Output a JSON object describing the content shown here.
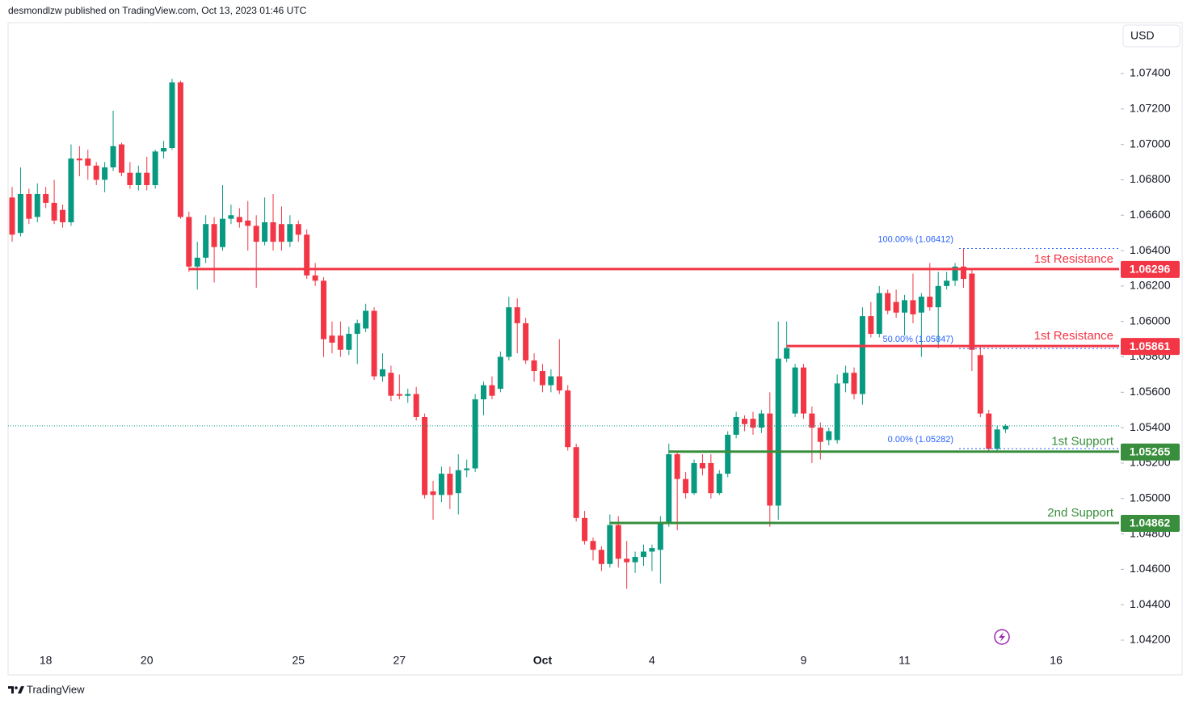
{
  "header": {
    "text": "desmondlzw published on TradingView.com, Oct 13, 2023 01:46 UTC"
  },
  "footer": {
    "brand": "TradingView"
  },
  "chart_data": {
    "type": "candlestick",
    "currency": "USD",
    "up_color": "#089981",
    "down_color": "#f23645",
    "categories": [
      null,
      null,
      null,
      null,
      "18",
      null,
      null,
      null,
      null,
      null,
      null,
      null,
      null,
      null,
      null,
      null,
      "20",
      null,
      null,
      null,
      null,
      null,
      null,
      null,
      null,
      null,
      null,
      null,
      null,
      null,
      null,
      null,
      null,
      null,
      "25",
      null,
      null,
      null,
      null,
      null,
      null,
      null,
      null,
      null,
      null,
      null,
      "27",
      null,
      null,
      null,
      null,
      null,
      null,
      null,
      null,
      null,
      null,
      null,
      null,
      null,
      null,
      null,
      null,
      "Oct",
      null,
      null,
      null,
      null,
      null,
      null,
      null,
      null,
      null,
      null,
      null,
      null,
      "4",
      null,
      null,
      null,
      null,
      null,
      null,
      null,
      null,
      null,
      null,
      null,
      null,
      null,
      null,
      null,
      null,
      null,
      "9",
      null,
      null,
      null,
      null,
      null,
      null,
      null,
      null,
      null,
      null,
      null,
      "11",
      null,
      null,
      null,
      null,
      null,
      null,
      null,
      null,
      null,
      null,
      null,
      null,
      null,
      null,
      null,
      null,
      null,
      "16",
      null,
      null,
      null,
      null,
      null,
      null,
      null
    ],
    "open": [
      1.067,
      1.065,
      1.0672,
      1.0659,
      1.0672,
      1.0667,
      1.0663,
      1.0656,
      1.0692,
      1.0692,
      1.0688,
      1.068,
      1.0687,
      1.07,
      1.0684,
      1.0677,
      1.0684,
      1.0677,
      1.0696,
      1.0698,
      1.0735,
      1.0659,
      1.0631,
      1.0636,
      1.0655,
      1.0642,
      1.0658,
      1.0659,
      1.0657,
      1.0654,
      1.0645,
      1.0656,
      1.0655,
      1.0645,
      1.0655,
      1.0649,
      1.0626,
      1.0623,
      1.0592,
      1.0592,
      1.0584,
      1.0593,
      1.0596,
      1.0606,
      1.0569,
      1.0571,
      1.0559,
      1.0558,
      1.0559,
      1.0546,
      1.0504,
      1.0502,
      1.0514,
      1.0503,
      1.0516,
      1.0517,
      1.0556,
      1.0564,
      1.0562,
      1.058,
      1.0608,
      1.0599,
      1.0578,
      1.0572,
      1.0564,
      1.0569,
      1.0561,
      1.0529,
      1.0489,
      1.0476,
      1.0471,
      1.0463,
      1.0485,
      1.0466,
      1.0464,
      1.0467,
      1.047,
      1.0471,
      1.0486,
      1.0525,
      1.0511,
      1.0503,
      1.052,
      1.052,
      1.0503,
      1.0514,
      1.0536,
      1.0545,
      1.0545,
      1.054,
      1.0548,
      1.0496,
      1.0579,
      1.0548,
      1.0574,
      1.0548,
      1.054,
      1.0533,
      1.0533,
      1.0565,
      1.0571,
      1.0559,
      1.0603,
      1.0593,
      1.0616,
      1.0611,
      1.0605,
      1.0612,
      1.0605,
      1.0614,
      1.0608,
      1.062,
      1.0623,
      1.0631,
      1.0627,
      1.0581,
      1.0548,
      1.0528,
      1.0539,
      null,
      null,
      null,
      null,
      null,
      null,
      null,
      null,
      null,
      null,
      null,
      null,
      null
    ],
    "high": [
      1.0676,
      1.0687,
      1.0675,
      1.0678,
      1.0676,
      1.068,
      1.0666,
      1.07,
      1.0699,
      1.0697,
      1.069,
      1.069,
      1.0719,
      1.0701,
      1.069,
      1.0688,
      1.0693,
      1.0697,
      1.0702,
      1.0737,
      1.0736,
      1.0662,
      1.0645,
      1.066,
      1.0659,
      1.0677,
      1.0666,
      1.0664,
      1.0668,
      1.066,
      1.067,
      1.0672,
      1.0665,
      1.066,
      1.0657,
      1.0652,
      1.0633,
      1.0625,
      1.06,
      1.06,
      1.0597,
      1.0601,
      1.061,
      1.0608,
      1.0582,
      1.0575,
      1.057,
      1.0562,
      1.0563,
      1.0548,
      1.051,
      1.0518,
      1.0518,
      1.0525,
      1.0522,
      1.0559,
      1.0566,
      1.0569,
      1.0583,
      1.0614,
      1.0613,
      1.0602,
      1.0582,
      1.0576,
      1.0573,
      1.059,
      1.0564,
      1.0531,
      1.0493,
      1.0478,
      1.0473,
      1.0491,
      1.049,
      1.0476,
      1.047,
      1.0474,
      1.0474,
      1.049,
      1.0531,
      1.0527,
      1.0515,
      1.0522,
      1.0525,
      1.0525,
      1.0516,
      1.0538,
      1.0549,
      1.0547,
      1.0549,
      1.055,
      1.056,
      1.06,
      1.06,
      1.0576,
      1.0576,
      1.0552,
      1.0543,
      1.054,
      1.057,
      1.0575,
      1.0574,
      1.0608,
      1.0611,
      1.062,
      1.0618,
      1.0618,
      1.0615,
      1.0627,
      1.0616,
      1.0633,
      1.0628,
      1.0628,
      1.0633,
      1.0641,
      1.0629,
      1.0586,
      1.055,
      1.0541,
      1.0542,
      null,
      null,
      null,
      null,
      null,
      null,
      null,
      null,
      null,
      null,
      null,
      null,
      null
    ],
    "low": [
      1.0645,
      1.0648,
      1.0655,
      1.0656,
      1.0664,
      1.0655,
      1.0653,
      1.0654,
      1.0682,
      1.068,
      1.0677,
      1.0673,
      1.0685,
      1.0682,
      1.0675,
      1.0674,
      1.0674,
      1.0675,
      1.0692,
      1.0697,
      1.0658,
      1.0628,
      1.0618,
      1.0633,
      1.0622,
      1.064,
      1.0655,
      1.0653,
      1.064,
      1.0619,
      1.0643,
      1.064,
      1.064,
      1.0642,
      1.0645,
      1.0624,
      1.062,
      1.058,
      1.0582,
      1.058,
      1.0581,
      1.0576,
      1.0594,
      1.0567,
      1.0566,
      1.0555,
      1.0556,
      1.0554,
      1.0544,
      1.05,
      1.0488,
      1.0498,
      1.0494,
      1.0491,
      1.0512,
      1.0515,
      1.0547,
      1.0556,
      1.056,
      1.0578,
      1.0582,
      1.0576,
      1.0566,
      1.056,
      1.056,
      1.0559,
      1.0527,
      1.0487,
      1.0474,
      1.0465,
      1.0459,
      1.0461,
      1.0461,
      1.0449,
      1.0458,
      1.0462,
      1.0459,
      1.0452,
      1.0484,
      1.0482,
      1.05,
      1.0502,
      1.0513,
      1.05,
      1.0502,
      1.0512,
      1.0534,
      1.0538,
      1.0536,
      1.0537,
      1.0484,
      1.0488,
      1.0577,
      1.0546,
      1.0545,
      1.052,
      1.0522,
      1.053,
      1.0531,
      1.056,
      1.0556,
      1.0553,
      1.0591,
      1.0591,
      1.0604,
      1.0602,
      1.0592,
      1.0599,
      1.058,
      1.0606,
      1.0585,
      1.0618,
      1.062,
      1.0619,
      1.0572,
      1.0546,
      1.0527,
      1.0526,
      1.0537,
      null,
      null,
      null,
      null,
      null,
      null,
      null,
      null,
      null,
      null,
      null,
      null,
      null
    ],
    "close": [
      1.0649,
      1.0672,
      1.0658,
      1.0672,
      1.0667,
      1.0657,
      1.0656,
      1.0692,
      1.0691,
      1.0688,
      1.068,
      1.0687,
      1.0699,
      1.0684,
      1.0677,
      1.0684,
      1.0677,
      1.0696,
      1.0698,
      1.0735,
      1.0659,
      1.0631,
      1.0636,
      1.0655,
      1.0642,
      1.0658,
      1.066,
      1.0656,
      1.0654,
      1.0645,
      1.0656,
      1.0645,
      1.0645,
      1.0655,
      1.0649,
      1.0626,
      1.0623,
      1.059,
      1.0588,
      1.0584,
      1.0593,
      1.0599,
      1.0606,
      1.0569,
      1.0573,
      1.0558,
      1.0558,
      1.0559,
      1.0546,
      1.0502,
      1.0502,
      1.0514,
      1.0502,
      1.0516,
      1.0517,
      1.0556,
      1.0564,
      1.0558,
      1.058,
      1.0608,
      1.0599,
      1.0578,
      1.0572,
      1.0564,
      1.0569,
      1.0561,
      1.0529,
      1.0489,
      1.0476,
      1.0471,
      1.0463,
      1.0485,
      1.0466,
      1.0464,
      1.0467,
      1.047,
      1.0472,
      1.0486,
      1.0525,
      1.0511,
      1.0503,
      1.052,
      1.0517,
      1.0503,
      1.0514,
      1.0536,
      1.0546,
      1.0542,
      1.054,
      1.0548,
      1.0496,
      1.0579,
      1.0585,
      1.0574,
      1.0548,
      1.054,
      1.0532,
      1.0538,
      1.0565,
      1.0571,
      1.0559,
      1.0603,
      1.0593,
      1.0616,
      1.0606,
      1.0605,
      1.0612,
      1.0604,
      1.0614,
      1.0608,
      1.062,
      1.0623,
      1.0631,
      1.0624,
      1.0584,
      1.0548,
      1.0528,
      1.0539,
      1.0541,
      null,
      null,
      null,
      null,
      null,
      null,
      null,
      null,
      null,
      null,
      null,
      null,
      null
    ],
    "ylim": [
      1.04,
      1.077
    ],
    "yticks": [
      {
        "value": 1.042,
        "label": "1.04200"
      },
      {
        "value": 1.044,
        "label": "1.04400"
      },
      {
        "value": 1.046,
        "label": "1.04600"
      },
      {
        "value": 1.048,
        "label": "1.04800"
      },
      {
        "value": 1.05,
        "label": "1.05000"
      },
      {
        "value": 1.052,
        "label": "1.05200"
      },
      {
        "value": 1.054,
        "label": "1.05400"
      },
      {
        "value": 1.056,
        "label": "1.05600"
      },
      {
        "value": 1.058,
        "label": "1.05800"
      },
      {
        "value": 1.06,
        "label": "1.06000"
      },
      {
        "value": 1.062,
        "label": "1.06200"
      },
      {
        "value": 1.064,
        "label": "1.06400"
      },
      {
        "value": 1.066,
        "label": "1.06600"
      },
      {
        "value": 1.068,
        "label": "1.06800"
      },
      {
        "value": 1.07,
        "label": "1.07000"
      },
      {
        "value": 1.072,
        "label": "1.07200"
      },
      {
        "value": 1.074,
        "label": "1.07400"
      }
    ],
    "levels": [
      {
        "name": "1st Resistance",
        "value": 1.06296,
        "color": "#f23645"
      },
      {
        "name": "1st Resistance",
        "value": 1.05861,
        "color": "#f23645"
      },
      {
        "name": "1st Support",
        "value": 1.05265,
        "color": "#388e3c"
      },
      {
        "name": "2nd Support",
        "value": 1.04862,
        "color": "#388e3c"
      }
    ],
    "fib": [
      {
        "label": "100.00% (1.06412)",
        "value": 1.06412
      },
      {
        "label": "50.00% (1.05847)",
        "value": 1.05847
      },
      {
        "label": "0.00% (1.05282)",
        "value": 1.05282
      }
    ],
    "fib_color": "#2962ff"
  }
}
